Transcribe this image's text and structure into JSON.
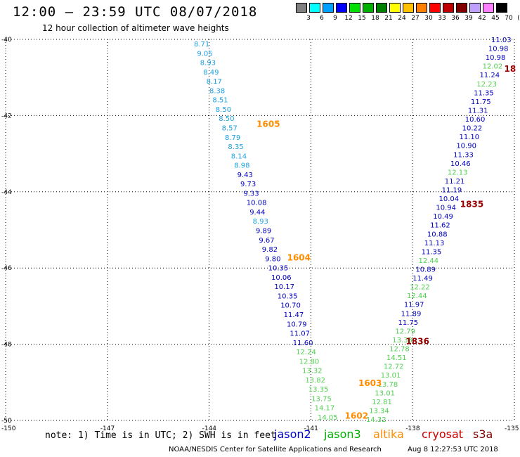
{
  "title": "12:00 – 23:59 UTC 08/07/2018",
  "subtitle": "12 hour collection of altimeter wave heights",
  "legend": {
    "labels": [
      "3",
      "6",
      "9",
      "12",
      "15",
      "18",
      "21",
      "24",
      "27",
      "30",
      "33",
      "36",
      "39",
      "42",
      "45",
      "70",
      "(ft)"
    ],
    "colors": [
      "#808080",
      "#00ffff",
      "#00a0ff",
      "#0000ff",
      "#00e000",
      "#00b000",
      "#008000",
      "#ffff00",
      "#ffc000",
      "#ff8000",
      "#ff0000",
      "#c00000",
      "#800000",
      "#c0a0ff",
      "#ff80ff",
      "#000000"
    ]
  },
  "axes": {
    "lat_labels": [
      "-40",
      "-42",
      "-44",
      "-46",
      "-48",
      "-50"
    ],
    "lon_labels": [
      "-150",
      "-147",
      "-144",
      "-141",
      "-138",
      "-135"
    ],
    "lat_range": [
      -50,
      -40
    ],
    "lon_range": [
      -150,
      -135
    ]
  },
  "note": "note: 1) Time is in UTC; 2) SWH is in feet",
  "satellites": [
    {
      "name": "jason2",
      "color": "#0000cc"
    },
    {
      "name": "jason3",
      "color": "#00b000"
    },
    {
      "name": "altika",
      "color": "#ff8c00"
    },
    {
      "name": "cryosat",
      "color": "#cc0000"
    },
    {
      "name": "s3a",
      "color": "#800000"
    }
  ],
  "footer_left": "NOAA/NESDIS Center for Satellite Applications and Research",
  "footer_right": "Aug  8 12:27:53 UTC 2018",
  "time_labels": [
    {
      "text": "1605",
      "lat": -42.3,
      "lon": -142.6,
      "color": "#ff8c00"
    },
    {
      "text": "1604",
      "lat": -45.8,
      "lon": -141.7,
      "color": "#ff8c00"
    },
    {
      "text": "1603",
      "lat": -49.1,
      "lon": -139.6,
      "color": "#ff8c00"
    },
    {
      "text": "1602",
      "lat": -49.95,
      "lon": -140.0,
      "color": "#ff8c00"
    },
    {
      "text": "18",
      "lat": -40.85,
      "lon": -135.3,
      "color": "#990000"
    },
    {
      "text": "1835",
      "lat": -44.4,
      "lon": -136.6,
      "color": "#990000"
    },
    {
      "text": "1836",
      "lat": -48.0,
      "lon": -138.2,
      "color": "#990000"
    }
  ],
  "track_left": [
    {
      "v": "8.71",
      "c": "#1ea0e0"
    },
    {
      "v": "9.05",
      "c": "#1ea0e0"
    },
    {
      "v": "8.93",
      "c": "#1ea0e0"
    },
    {
      "v": "8.49",
      "c": "#1ea0e0"
    },
    {
      "v": "8.17",
      "c": "#1ea0e0"
    },
    {
      "v": "8.38",
      "c": "#1ea0e0"
    },
    {
      "v": "8.51",
      "c": "#1ea0e0"
    },
    {
      "v": "8.50",
      "c": "#1ea0e0"
    },
    {
      "v": "8.50",
      "c": "#1ea0e0"
    },
    {
      "v": "8.57",
      "c": "#1ea0e0"
    },
    {
      "v": "8.79",
      "c": "#1ea0e0"
    },
    {
      "v": "8.35",
      "c": "#1ea0e0"
    },
    {
      "v": "8.14",
      "c": "#1ea0e0"
    },
    {
      "v": "8.98",
      "c": "#1ea0e0"
    },
    {
      "v": "9.43",
      "c": "#0000c0"
    },
    {
      "v": "9.73",
      "c": "#0000c0"
    },
    {
      "v": "9.33",
      "c": "#0000c0"
    },
    {
      "v": "10.08",
      "c": "#0000c0"
    },
    {
      "v": "9.44",
      "c": "#0000c0"
    },
    {
      "v": "8.93",
      "c": "#1ea0e0"
    },
    {
      "v": "9.89",
      "c": "#0000c0"
    },
    {
      "v": "9.67",
      "c": "#0000c0"
    },
    {
      "v": "9.82",
      "c": "#0000c0"
    },
    {
      "v": "9.80",
      "c": "#0000c0"
    },
    {
      "v": "10.35",
      "c": "#0000c0"
    },
    {
      "v": "10.06",
      "c": "#0000c0"
    },
    {
      "v": "10.17",
      "c": "#0000c0"
    },
    {
      "v": "10.35",
      "c": "#0000c0"
    },
    {
      "v": "10.70",
      "c": "#0000c0"
    },
    {
      "v": "11.47",
      "c": "#0000c0"
    },
    {
      "v": "10.79",
      "c": "#0000c0"
    },
    {
      "v": "11.07",
      "c": "#0000c0"
    },
    {
      "v": "11.60",
      "c": "#0000c0"
    },
    {
      "v": "12.24",
      "c": "#50d050"
    },
    {
      "v": "12.80",
      "c": "#50d050"
    },
    {
      "v": "13.32",
      "c": "#50d050"
    },
    {
      "v": "13.82",
      "c": "#50d050"
    },
    {
      "v": "13.35",
      "c": "#50d050"
    },
    {
      "v": "13.75",
      "c": "#50d050"
    },
    {
      "v": "14.17",
      "c": "#50d050"
    },
    {
      "v": "14.05",
      "c": "#50d050"
    }
  ],
  "track_right": [
    {
      "v": "11.03",
      "c": "#0000c0"
    },
    {
      "v": "10.98",
      "c": "#0000c0"
    },
    {
      "v": "10.98",
      "c": "#0000c0"
    },
    {
      "v": "12.02",
      "c": "#50d050"
    },
    {
      "v": "11.24",
      "c": "#0000c0"
    },
    {
      "v": "12.23",
      "c": "#50d050"
    },
    {
      "v": "11.35",
      "c": "#0000c0"
    },
    {
      "v": "11.75",
      "c": "#0000c0"
    },
    {
      "v": "11.31",
      "c": "#0000c0"
    },
    {
      "v": "10.60",
      "c": "#0000c0"
    },
    {
      "v": "10.22",
      "c": "#0000c0"
    },
    {
      "v": "11.10",
      "c": "#0000c0"
    },
    {
      "v": "10.90",
      "c": "#0000c0"
    },
    {
      "v": "11.33",
      "c": "#0000c0"
    },
    {
      "v": "10.46",
      "c": "#0000c0"
    },
    {
      "v": "12.13",
      "c": "#50d050"
    },
    {
      "v": "11.21",
      "c": "#0000c0"
    },
    {
      "v": "11.19",
      "c": "#0000c0"
    },
    {
      "v": "10.04",
      "c": "#0000c0"
    },
    {
      "v": "10.94",
      "c": "#0000c0"
    },
    {
      "v": "10.49",
      "c": "#0000c0"
    },
    {
      "v": "11.62",
      "c": "#0000c0"
    },
    {
      "v": "10.88",
      "c": "#0000c0"
    },
    {
      "v": "11.13",
      "c": "#0000c0"
    },
    {
      "v": "11.35",
      "c": "#0000c0"
    },
    {
      "v": "12.44",
      "c": "#50d050"
    },
    {
      "v": "10.89",
      "c": "#0000c0"
    },
    {
      "v": "11.49",
      "c": "#0000c0"
    },
    {
      "v": "12.22",
      "c": "#50d050"
    },
    {
      "v": "12.44",
      "c": "#50d050"
    },
    {
      "v": "11.97",
      "c": "#0000c0"
    },
    {
      "v": "11.89",
      "c": "#0000c0"
    },
    {
      "v": "11.75",
      "c": "#0000c0"
    },
    {
      "v": "12.79",
      "c": "#50d050"
    },
    {
      "v": "13.33",
      "c": "#50d050"
    },
    {
      "v": "12.78",
      "c": "#50d050"
    },
    {
      "v": "14.51",
      "c": "#50d050"
    },
    {
      "v": "12.72",
      "c": "#50d050"
    },
    {
      "v": "13.01",
      "c": "#50d050"
    },
    {
      "v": "13.78",
      "c": "#50d050"
    },
    {
      "v": "13.01",
      "c": "#50d050"
    },
    {
      "v": "12.81",
      "c": "#50d050"
    },
    {
      "v": "13.34",
      "c": "#50d050"
    },
    {
      "v": "14.32",
      "c": "#50d050"
    }
  ]
}
